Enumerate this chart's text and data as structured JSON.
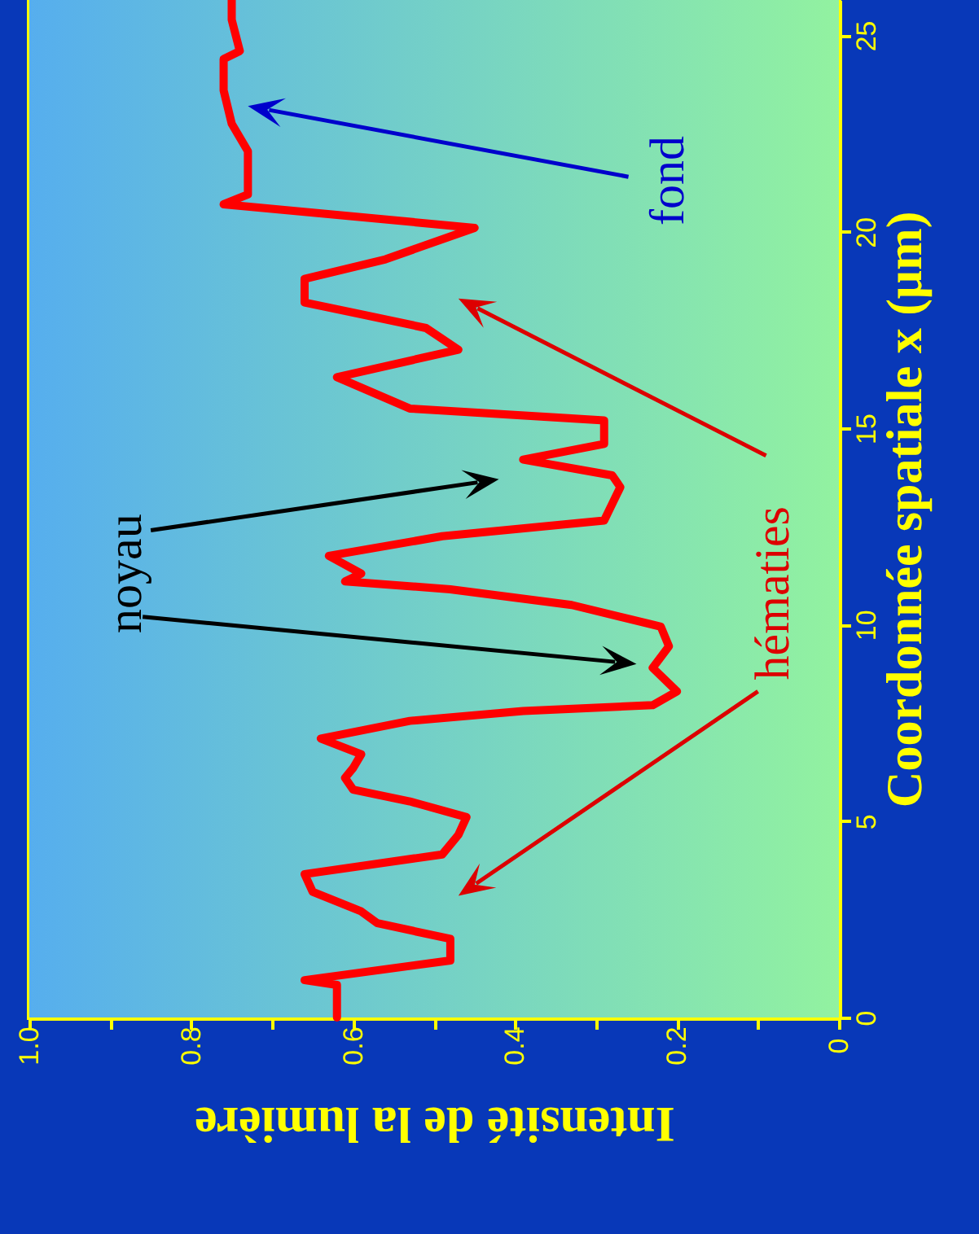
{
  "chart_data": {
    "type": "line",
    "xlabel": "Intensité de la lumière",
    "ylabel": "Coordonnée spatiale x (μm)",
    "annotations": [
      "noyau",
      "hématies",
      "fond"
    ],
    "x": [
      0.62,
      0.62,
      0.62,
      0.66,
      0.48,
      0.48,
      0.57,
      0.59,
      0.65,
      0.66,
      0.49,
      0.47,
      0.46,
      0.53,
      0.6,
      0.61,
      0.6,
      0.59,
      0.64,
      0.53,
      0.39,
      0.23,
      0.2,
      0.23,
      0.21,
      0.22,
      0.33,
      0.48,
      0.61,
      0.59,
      0.63,
      0.49,
      0.29,
      0.27,
      0.28,
      0.39,
      0.29,
      0.29,
      0.53,
      0.62,
      0.47,
      0.51,
      0.59,
      0.66,
      0.66,
      0.56,
      0.45,
      0.76,
      0.73,
      0.73,
      0.75,
      0.76,
      0.76,
      0.74,
      0.75,
      0.75
    ],
    "series": [
      {
        "color": "#ff0000",
        "values": [
          0,
          0.3,
          0.83,
          0.95,
          1.45,
          2.0,
          2.4,
          2.7,
          3.2,
          3.65,
          4.15,
          4.65,
          5.1,
          5.5,
          5.8,
          6.1,
          6.35,
          6.7,
          7.1,
          7.55,
          7.8,
          7.95,
          8.3,
          8.9,
          9.45,
          9.95,
          10.5,
          10.9,
          11.1,
          11.3,
          11.75,
          12.25,
          12.65,
          13.5,
          13.8,
          14.2,
          14.6,
          15.2,
          15.5,
          16.3,
          17.0,
          17.55,
          17.9,
          18.2,
          18.8,
          19.3,
          20.1,
          20.7,
          20.95,
          22.05,
          22.75,
          23.6,
          24.4,
          24.6,
          25.4,
          25.9
        ]
      }
    ],
    "xlim": [
      1,
      0
    ],
    "xticks": [
      0,
      {
        "value": 0.1,
        "label": null
      },
      0.2,
      {
        "value": 0.3,
        "label": null
      },
      0.4,
      {
        "value": 0.5,
        "label": null
      },
      0.6,
      {
        "value": 0.7,
        "label": null
      },
      0.8,
      {
        "value": 0.9,
        "label": null
      },
      {
        "value": 1,
        "label": "1.0"
      }
    ],
    "ylim": [
      0,
      25.9
    ],
    "yticks": [
      0,
      5,
      10,
      15,
      20,
      25
    ]
  }
}
